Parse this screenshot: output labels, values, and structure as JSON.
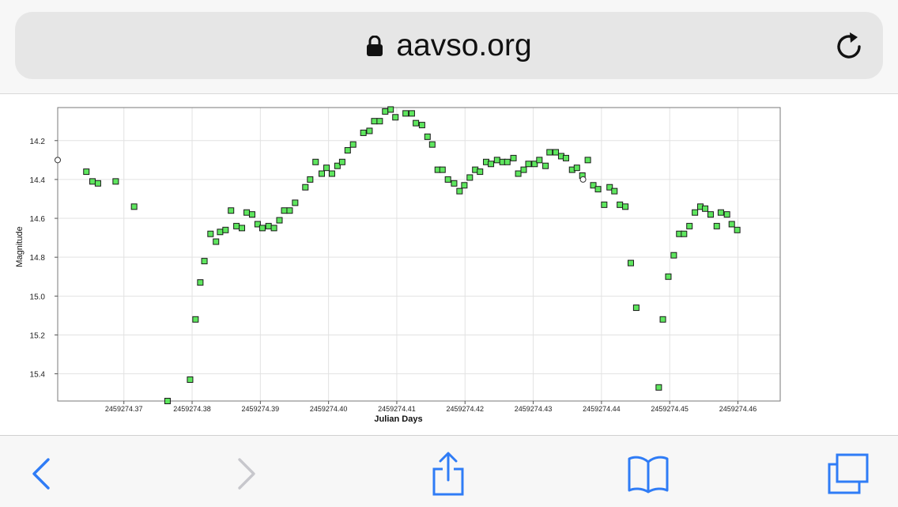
{
  "browser": {
    "url": "aavso.org",
    "icons": {
      "lock": "lock-icon",
      "reload": "reload-icon"
    }
  },
  "toolbar": {
    "icons": [
      "back-icon",
      "forward-icon",
      "share-icon",
      "bookmarks-icon",
      "tabs-icon"
    ],
    "accent_color": "#2f7cf6",
    "disabled_color": "#c7c7cc"
  },
  "chart_data": {
    "type": "scatter",
    "title": "",
    "xlabel": "Julian Days",
    "ylabel": "Magnitude",
    "xlim": [
      2459274.3603,
      2459274.4662
    ],
    "ylim": [
      14.03,
      15.54
    ],
    "y_inverted": true,
    "grid": true,
    "xticks": [
      "2459274.37",
      "2459274.38",
      "2459274.39",
      "2459274.40",
      "2459274.41",
      "2459274.42",
      "2459274.43",
      "2459274.44",
      "2459274.45",
      "2459274.46"
    ],
    "yticks": [
      "14.2",
      "14.4",
      "14.6",
      "14.8",
      "15.0",
      "15.2",
      "15.4"
    ],
    "marker_color": "#5ee65e",
    "series": [
      {
        "marker": "square",
        "points": [
          [
            2459274.3645,
            14.36
          ],
          [
            2459274.3654,
            14.41
          ],
          [
            2459274.3662,
            14.42
          ],
          [
            2459274.3688,
            14.41
          ],
          [
            2459274.3715,
            14.54
          ],
          [
            2459274.3764,
            15.54
          ],
          [
            2459274.3797,
            15.43
          ],
          [
            2459274.3805,
            15.12
          ],
          [
            2459274.3812,
            14.93
          ],
          [
            2459274.3818,
            14.82
          ],
          [
            2459274.3827,
            14.68
          ],
          [
            2459274.3835,
            14.72
          ],
          [
            2459274.3841,
            14.67
          ],
          [
            2459274.3849,
            14.66
          ],
          [
            2459274.3857,
            14.56
          ],
          [
            2459274.3865,
            14.64
          ],
          [
            2459274.3873,
            14.65
          ],
          [
            2459274.388,
            14.57
          ],
          [
            2459274.3888,
            14.58
          ],
          [
            2459274.3896,
            14.63
          ],
          [
            2459274.3903,
            14.65
          ],
          [
            2459274.3912,
            14.64
          ],
          [
            2459274.392,
            14.65
          ],
          [
            2459274.3928,
            14.61
          ],
          [
            2459274.3935,
            14.56
          ],
          [
            2459274.3943,
            14.56
          ],
          [
            2459274.3951,
            14.52
          ],
          [
            2459274.3966,
            14.44
          ],
          [
            2459274.3973,
            14.4
          ],
          [
            2459274.3981,
            14.31
          ],
          [
            2459274.399,
            14.37
          ],
          [
            2459274.3997,
            14.34
          ],
          [
            2459274.4005,
            14.37
          ],
          [
            2459274.4013,
            14.33
          ],
          [
            2459274.402,
            14.31
          ],
          [
            2459274.4028,
            14.25
          ],
          [
            2459274.4036,
            14.22
          ],
          [
            2459274.4051,
            14.16
          ],
          [
            2459274.406,
            14.15
          ],
          [
            2459274.4067,
            14.1
          ],
          [
            2459274.4075,
            14.1
          ],
          [
            2459274.4083,
            14.05
          ],
          [
            2459274.4091,
            14.04
          ],
          [
            2459274.4098,
            14.08
          ],
          [
            2459274.4113,
            14.06
          ],
          [
            2459274.4122,
            14.06
          ],
          [
            2459274.4128,
            14.11
          ],
          [
            2459274.4137,
            14.12
          ],
          [
            2459274.4145,
            14.18
          ],
          [
            2459274.4152,
            14.22
          ],
          [
            2459274.416,
            14.35
          ],
          [
            2459274.4167,
            14.35
          ],
          [
            2459274.4175,
            14.4
          ],
          [
            2459274.4184,
            14.42
          ],
          [
            2459274.4192,
            14.46
          ],
          [
            2459274.4199,
            14.43
          ],
          [
            2459274.4207,
            14.39
          ],
          [
            2459274.4215,
            14.35
          ],
          [
            2459274.4222,
            14.36
          ],
          [
            2459274.4231,
            14.31
          ],
          [
            2459274.4238,
            14.32
          ],
          [
            2459274.4247,
            14.3
          ],
          [
            2459274.4255,
            14.31
          ],
          [
            2459274.4262,
            14.31
          ],
          [
            2459274.4271,
            14.29
          ],
          [
            2459274.4278,
            14.37
          ],
          [
            2459274.4286,
            14.35
          ],
          [
            2459274.4293,
            14.32
          ],
          [
            2459274.4302,
            14.32
          ],
          [
            2459274.4309,
            14.3
          ],
          [
            2459274.4318,
            14.33
          ],
          [
            2459274.4324,
            14.26
          ],
          [
            2459274.4333,
            14.26
          ],
          [
            2459274.4341,
            14.28
          ],
          [
            2459274.4348,
            14.29
          ],
          [
            2459274.4357,
            14.35
          ],
          [
            2459274.4364,
            14.34
          ],
          [
            2459274.4372,
            14.38
          ],
          [
            2459274.438,
            14.3
          ],
          [
            2459274.4388,
            14.43
          ],
          [
            2459274.4395,
            14.45
          ],
          [
            2459274.4404,
            14.53
          ],
          [
            2459274.4412,
            14.44
          ],
          [
            2459274.4419,
            14.46
          ],
          [
            2459274.4427,
            14.53
          ],
          [
            2459274.4435,
            14.54
          ],
          [
            2459274.4443,
            14.83
          ],
          [
            2459274.4451,
            15.06
          ],
          [
            2459274.4484,
            15.47
          ],
          [
            2459274.449,
            15.12
          ],
          [
            2459274.4498,
            14.9
          ],
          [
            2459274.4506,
            14.79
          ],
          [
            2459274.4514,
            14.68
          ],
          [
            2459274.4521,
            14.68
          ],
          [
            2459274.4529,
            14.64
          ],
          [
            2459274.4537,
            14.57
          ],
          [
            2459274.4545,
            14.54
          ],
          [
            2459274.4552,
            14.55
          ],
          [
            2459274.456,
            14.58
          ],
          [
            2459274.4569,
            14.64
          ],
          [
            2459274.4575,
            14.57
          ],
          [
            2459274.4584,
            14.58
          ],
          [
            2459274.4591,
            14.63
          ],
          [
            2459274.4599,
            14.66
          ]
        ]
      },
      {
        "marker": "circle",
        "points": [
          [
            2459274.3603,
            14.3
          ],
          [
            2459274.4373,
            14.4
          ]
        ]
      }
    ]
  }
}
